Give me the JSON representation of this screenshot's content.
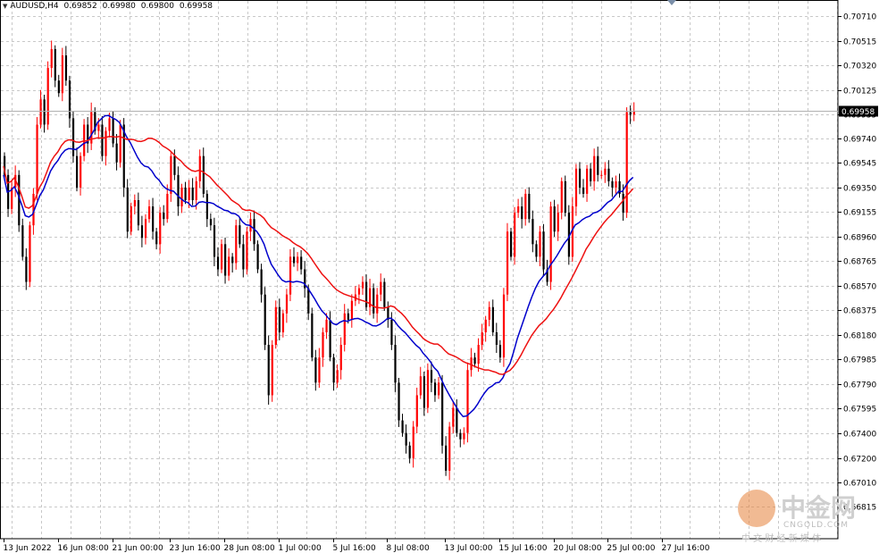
{
  "header": {
    "symbol": "AUDUSD,H4",
    "open": "0.69852",
    "high": "0.69980",
    "low": "0.69800",
    "close": "0.69958"
  },
  "colors": {
    "bull": "#ff0000",
    "bear": "#000000",
    "ma_fast": "#0000cc",
    "ma_slow": "#ee1111",
    "grid": "#c8c8c8",
    "price_tag": "#000000"
  },
  "watermark": {
    "title": "中金网",
    "subtitle": "CNGOLD.COM",
    "tagline": "中 文 财 经 新 媒 体"
  },
  "chart_data": {
    "type": "candlestick",
    "title": "AUDUSD,H4",
    "current_price": "0.69958",
    "grid": true,
    "ylim": [
      0.6656,
      0.7084
    ],
    "y_ticks": [
      "0.70710",
      "0.70515",
      "0.70320",
      "0.70125",
      "0.69935",
      "0.69740",
      "0.69545",
      "0.69350",
      "0.69155",
      "0.68960",
      "0.68765",
      "0.68570",
      "0.68375",
      "0.68180",
      "0.67985",
      "0.67790",
      "0.67595",
      "0.67400",
      "0.67200",
      "0.67010",
      "0.66815"
    ],
    "x_ticks": [
      {
        "label": "13 Jun 2022",
        "bar": 0
      },
      {
        "label": "16 Jun 08:00",
        "bar": 15
      },
      {
        "label": "21 Jun 00:00",
        "bar": 30
      },
      {
        "label": "23 Jun 16:00",
        "bar": 46
      },
      {
        "label": "28 Jun 08:00",
        "bar": 61
      },
      {
        "label": "1 Jul 00:00",
        "bar": 76
      },
      {
        "label": "5 Jul 16:00",
        "bar": 91
      },
      {
        "label": "8 Jul 08:00",
        "bar": 106
      },
      {
        "label": "13 Jul 00:00",
        "bar": 122
      },
      {
        "label": "15 Jul 16:00",
        "bar": 137
      },
      {
        "label": "20 Jul 08:00",
        "bar": 152
      },
      {
        "label": "25 Jul 00:00",
        "bar": 167
      },
      {
        "label": "27 Jul 16:00",
        "bar": 182
      }
    ],
    "closes": [
      0.6945,
      0.6918,
      0.6935,
      0.6945,
      0.6905,
      0.688,
      0.686,
      0.6905,
      0.693,
      0.6985,
      0.7005,
      0.6985,
      0.703,
      0.7045,
      0.702,
      0.701,
      0.704,
      0.702,
      0.699,
      0.696,
      0.6935,
      0.696,
      0.6985,
      0.697,
      0.6995,
      0.698,
      0.6985,
      0.696,
      0.698,
      0.699,
      0.697,
      0.6955,
      0.6985,
      0.6935,
      0.69,
      0.692,
      0.6925,
      0.6905,
      0.6895,
      0.691,
      0.692,
      0.69,
      0.689,
      0.6915,
      0.691,
      0.693,
      0.696,
      0.6945,
      0.692,
      0.6935,
      0.6925,
      0.6935,
      0.6925,
      0.694,
      0.696,
      0.693,
      0.691,
      0.6905,
      0.688,
      0.687,
      0.689,
      0.6865,
      0.688,
      0.6875,
      0.6905,
      0.689,
      0.687,
      0.69,
      0.691,
      0.689,
      0.687,
      0.685,
      0.681,
      0.677,
      0.681,
      0.684,
      0.682,
      0.6835,
      0.685,
      0.688,
      0.6875,
      0.688,
      0.687,
      0.6855,
      0.6835,
      0.68,
      0.678,
      0.68,
      0.682,
      0.683,
      0.68,
      0.678,
      0.679,
      0.681,
      0.6835,
      0.683,
      0.6845,
      0.685,
      0.6855,
      0.686,
      0.684,
      0.6855,
      0.6835,
      0.685,
      0.686,
      0.684,
      0.683,
      0.681,
      0.678,
      0.675,
      0.674,
      0.673,
      0.672,
      0.6745,
      0.677,
      0.6785,
      0.676,
      0.679,
      0.678,
      0.677,
      0.678,
      0.673,
      0.671,
      0.6745,
      0.676,
      0.674,
      0.6735,
      0.674,
      0.679,
      0.68,
      0.6795,
      0.681,
      0.682,
      0.683,
      0.684,
      0.682,
      0.681,
      0.68,
      0.685,
      0.69,
      0.688,
      0.6915,
      0.692,
      0.691,
      0.693,
      0.691,
      0.689,
      0.688,
      0.69,
      0.687,
      0.686,
      0.692,
      0.69,
      0.6915,
      0.694,
      0.6915,
      0.688,
      0.692,
      0.695,
      0.6935,
      0.693,
      0.695,
      0.694,
      0.696,
      0.6945,
      0.6945,
      0.695,
      0.694,
      0.6935,
      0.694,
      0.693,
      0.6915,
      0.6995,
      0.6993,
      0.6996
    ]
  }
}
